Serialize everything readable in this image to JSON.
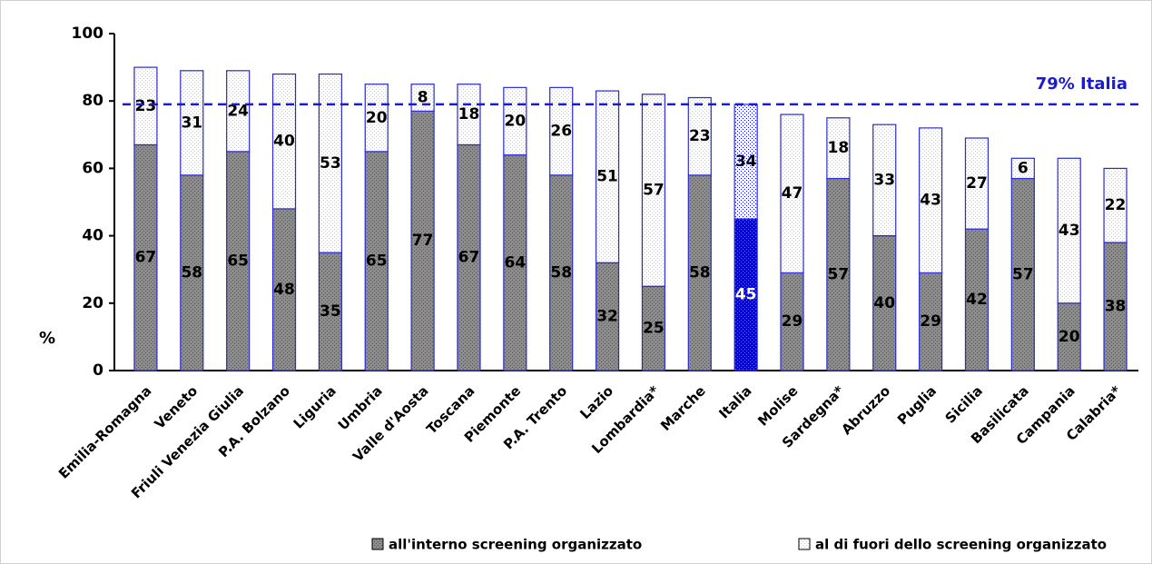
{
  "chart_data": {
    "type": "stacked_bar",
    "y_label": "%",
    "categories": [
      "Emilia-Romagna",
      "Veneto",
      "Friuli Venezia Giulia",
      "P.A. Bolzano",
      "Liguria",
      "Umbria",
      "Valle d'Aosta",
      "Toscana",
      "Piemonte",
      "P.A. Trento",
      "Lazio",
      "Lombardia*",
      "Marche",
      "Italia",
      "Molise",
      "Sardegna*",
      "Abruzzo",
      "Puglia",
      "Sicilia",
      "Basilicata",
      "Campania",
      "Calabria*"
    ],
    "series": [
      {
        "name": "all'interno screening organizzato",
        "color": "#8c8c8c",
        "values": [
          67,
          58,
          65,
          48,
          35,
          65,
          77,
          67,
          64,
          58,
          32,
          25,
          58,
          45,
          29,
          57,
          40,
          29,
          42,
          57,
          20,
          38
        ]
      },
      {
        "name": "al di fuori dello screening organizzato",
        "color": "#ffffff",
        "values": [
          23,
          31,
          24,
          40,
          53,
          20,
          8,
          18,
          20,
          26,
          51,
          57,
          23,
          34,
          47,
          18,
          33,
          43,
          27,
          6,
          43,
          22
        ]
      }
    ],
    "highlight_category": "Italia",
    "highlight_color": "#0000ff",
    "bar_border_color": "#2b2bd0",
    "reference_line": {
      "value": 79,
      "label": "79% Italia",
      "color": "#1a1ad6"
    },
    "ylim": [
      0,
      100
    ],
    "yticks": [
      0,
      20,
      40,
      60,
      80,
      100
    ],
    "grid": false
  }
}
